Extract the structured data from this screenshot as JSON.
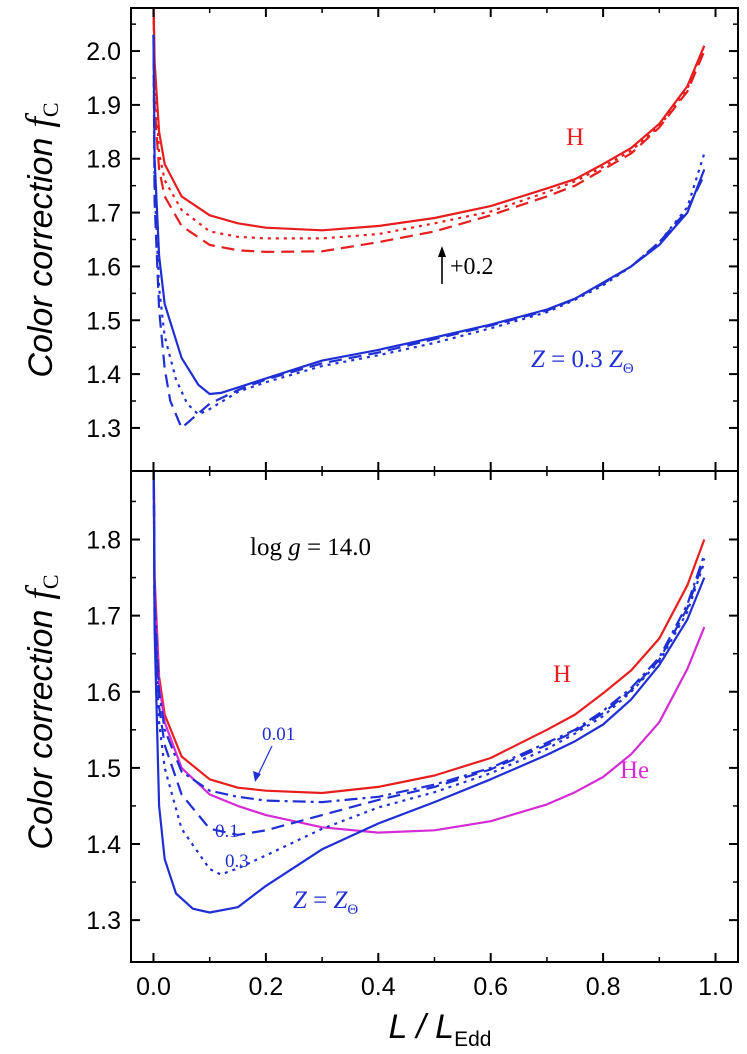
{
  "chart_data": [
    {
      "type": "line",
      "panel": "top",
      "ylabel": "Color correction",
      "ylabel_symbol": "f",
      "ylabel_subscript": "C",
      "xlim": [
        -0.04,
        1.04
      ],
      "ylim": [
        1.22,
        2.08
      ],
      "yticks": [
        "1.3",
        "1.4",
        "1.5",
        "1.6",
        "1.7",
        "1.8",
        "1.9",
        "2.0"
      ],
      "annotations": {
        "h_label": "H",
        "shift_label": "+0.2",
        "z_label_prefix": "Z",
        "z_label_mid": " = 0.3 ",
        "z_label_z": "Z",
        "z_label_sub": "Θ"
      },
      "series": [
        {
          "color": "#e81e1e",
          "dash": "solid",
          "x": [
            0.0,
            0.002,
            0.01,
            0.02,
            0.05,
            0.1,
            0.15,
            0.2,
            0.3,
            0.4,
            0.5,
            0.6,
            0.7,
            0.75,
            0.8,
            0.85,
            0.9,
            0.95,
            0.98
          ],
          "y": [
            2.1,
            1.98,
            1.85,
            1.79,
            1.73,
            1.695,
            1.68,
            1.672,
            1.667,
            1.675,
            1.69,
            1.712,
            1.745,
            1.762,
            1.79,
            1.82,
            1.865,
            1.935,
            2.01
          ]
        },
        {
          "color": "#e81e1e",
          "dash": "dot",
          "x": [
            0.0,
            0.002,
            0.01,
            0.02,
            0.05,
            0.1,
            0.15,
            0.2,
            0.3,
            0.4,
            0.5,
            0.6,
            0.7,
            0.75,
            0.8,
            0.85,
            0.9,
            0.95,
            0.98
          ],
          "y": [
            2.1,
            1.95,
            1.81,
            1.76,
            1.705,
            1.665,
            1.655,
            1.652,
            1.652,
            1.66,
            1.68,
            1.702,
            1.738,
            1.758,
            1.785,
            1.815,
            1.86,
            1.93,
            2.01
          ]
        },
        {
          "color": "#e81e1e",
          "dash": "dash",
          "x": [
            0.0,
            0.002,
            0.01,
            0.02,
            0.05,
            0.1,
            0.15,
            0.2,
            0.3,
            0.4,
            0.5,
            0.6,
            0.7,
            0.75,
            0.8,
            0.85,
            0.9,
            0.95,
            0.98
          ],
          "y": [
            2.1,
            1.9,
            1.78,
            1.73,
            1.675,
            1.64,
            1.63,
            1.627,
            1.628,
            1.645,
            1.665,
            1.695,
            1.73,
            1.75,
            1.78,
            1.81,
            1.858,
            1.925,
            2.0
          ]
        },
        {
          "color": "#1f2fd4",
          "dash": "solid",
          "x": [
            0.0,
            0.002,
            0.01,
            0.02,
            0.05,
            0.08,
            0.1,
            0.12,
            0.15,
            0.2,
            0.3,
            0.4,
            0.5,
            0.6,
            0.7,
            0.75,
            0.8,
            0.85,
            0.9,
            0.95,
            0.98
          ],
          "y": [
            2.03,
            1.8,
            1.62,
            1.53,
            1.43,
            1.38,
            1.363,
            1.365,
            1.375,
            1.392,
            1.425,
            1.445,
            1.468,
            1.492,
            1.52,
            1.54,
            1.57,
            1.6,
            1.64,
            1.7,
            1.78
          ]
        },
        {
          "color": "#1f2fd4",
          "dash": "dot",
          "x": [
            0.0,
            0.002,
            0.01,
            0.02,
            0.04,
            0.06,
            0.08,
            0.1,
            0.15,
            0.2,
            0.3,
            0.4,
            0.5,
            0.6,
            0.7,
            0.75,
            0.8,
            0.85,
            0.9,
            0.95,
            0.98
          ],
          "y": [
            2.03,
            1.75,
            1.56,
            1.47,
            1.39,
            1.345,
            1.325,
            1.335,
            1.367,
            1.385,
            1.415,
            1.435,
            1.458,
            1.485,
            1.515,
            1.538,
            1.565,
            1.6,
            1.645,
            1.71,
            1.81
          ]
        },
        {
          "color": "#1f2fd4",
          "dash": "dash",
          "x": [
            0.0,
            0.002,
            0.01,
            0.02,
            0.03,
            0.05,
            0.07,
            0.1,
            0.15,
            0.2,
            0.3,
            0.4,
            0.5,
            0.6,
            0.7,
            0.75,
            0.8,
            0.85,
            0.9,
            0.95,
            0.98
          ],
          "y": [
            2.03,
            1.72,
            1.52,
            1.41,
            1.35,
            1.3,
            1.318,
            1.345,
            1.37,
            1.39,
            1.42,
            1.44,
            1.465,
            1.49,
            1.518,
            1.54,
            1.568,
            1.6,
            1.645,
            1.705,
            1.77
          ]
        }
      ]
    },
    {
      "type": "line",
      "panel": "bottom",
      "xlabel": "L / L",
      "xlabel_subscript": "Edd",
      "ylabel": "Color correction",
      "ylabel_symbol": "f",
      "ylabel_subscript": "C",
      "xlim": [
        -0.04,
        1.04
      ],
      "ylim": [
        1.245,
        1.89
      ],
      "xticks": [
        "0.0",
        "0.2",
        "0.4",
        "0.6",
        "0.8",
        "1.0"
      ],
      "yticks": [
        "1.3",
        "1.4",
        "1.5",
        "1.6",
        "1.7",
        "1.8"
      ],
      "annotations": {
        "logg_prefix": "log ",
        "logg_g": "g",
        "logg_value": " = 14.0",
        "h_label": "H",
        "he_label": "He",
        "z001": "0.01",
        "z01": "0.1",
        "z03": "0.3",
        "zsun_z1": "Z",
        "zsun_eq": " = ",
        "zsun_z2": "Z",
        "zsun_sub": "Θ"
      },
      "series": [
        {
          "color": "#e81e1e",
          "dash": "solid",
          "x": [
            0.0,
            0.002,
            0.01,
            0.02,
            0.05,
            0.1,
            0.15,
            0.2,
            0.3,
            0.4,
            0.5,
            0.6,
            0.7,
            0.75,
            0.8,
            0.85,
            0.9,
            0.95,
            0.98
          ],
          "y": [
            1.95,
            1.75,
            1.62,
            1.57,
            1.515,
            1.485,
            1.474,
            1.47,
            1.467,
            1.475,
            1.49,
            1.513,
            1.55,
            1.57,
            1.598,
            1.628,
            1.67,
            1.74,
            1.8
          ]
        },
        {
          "color": "#d42bd4",
          "dash": "solid",
          "x": [
            0.0,
            0.002,
            0.01,
            0.02,
            0.05,
            0.1,
            0.15,
            0.2,
            0.3,
            0.4,
            0.5,
            0.6,
            0.7,
            0.75,
            0.8,
            0.85,
            0.9,
            0.95,
            0.98
          ],
          "y": [
            1.95,
            1.74,
            1.61,
            1.56,
            1.5,
            1.465,
            1.45,
            1.438,
            1.422,
            1.415,
            1.418,
            1.43,
            1.452,
            1.468,
            1.488,
            1.518,
            1.56,
            1.63,
            1.685
          ]
        },
        {
          "color": "#1f2fd4",
          "dash": "dashdot",
          "x": [
            0.0,
            0.002,
            0.01,
            0.02,
            0.05,
            0.1,
            0.15,
            0.2,
            0.3,
            0.4,
            0.5,
            0.6,
            0.7,
            0.75,
            0.8,
            0.85,
            0.9,
            0.95,
            0.98
          ],
          "y": [
            1.95,
            1.72,
            1.6,
            1.55,
            1.495,
            1.47,
            1.462,
            1.457,
            1.455,
            1.462,
            1.478,
            1.5,
            1.533,
            1.55,
            1.575,
            1.605,
            1.645,
            1.715,
            1.78
          ]
        },
        {
          "color": "#1f2fd4",
          "dash": "dash",
          "x": [
            0.0,
            0.002,
            0.01,
            0.02,
            0.05,
            0.1,
            0.15,
            0.2,
            0.3,
            0.4,
            0.5,
            0.6,
            0.7,
            0.75,
            0.8,
            0.85,
            0.9,
            0.95,
            0.98
          ],
          "y": [
            1.95,
            1.7,
            1.58,
            1.53,
            1.465,
            1.42,
            1.412,
            1.418,
            1.438,
            1.458,
            1.475,
            1.498,
            1.53,
            1.548,
            1.572,
            1.602,
            1.642,
            1.71,
            1.775
          ]
        },
        {
          "color": "#1f2fd4",
          "dash": "dot",
          "x": [
            0.0,
            0.002,
            0.01,
            0.02,
            0.05,
            0.1,
            0.12,
            0.15,
            0.2,
            0.3,
            0.4,
            0.5,
            0.6,
            0.7,
            0.75,
            0.8,
            0.85,
            0.9,
            0.95,
            0.98
          ],
          "y": [
            1.95,
            1.69,
            1.56,
            1.5,
            1.42,
            1.367,
            1.36,
            1.368,
            1.385,
            1.42,
            1.448,
            1.468,
            1.493,
            1.525,
            1.545,
            1.568,
            1.6,
            1.64,
            1.705,
            1.77
          ]
        },
        {
          "color": "#1f2fd4",
          "dash": "solid",
          "x": [
            0.0,
            0.002,
            0.01,
            0.02,
            0.04,
            0.07,
            0.1,
            0.15,
            0.2,
            0.3,
            0.4,
            0.5,
            0.6,
            0.7,
            0.75,
            0.8,
            0.85,
            0.9,
            0.95,
            0.98
          ],
          "y": [
            1.95,
            1.68,
            1.45,
            1.38,
            1.335,
            1.315,
            1.31,
            1.317,
            1.345,
            1.393,
            1.427,
            1.455,
            1.485,
            1.517,
            1.535,
            1.557,
            1.59,
            1.635,
            1.695,
            1.75
          ]
        }
      ]
    }
  ]
}
